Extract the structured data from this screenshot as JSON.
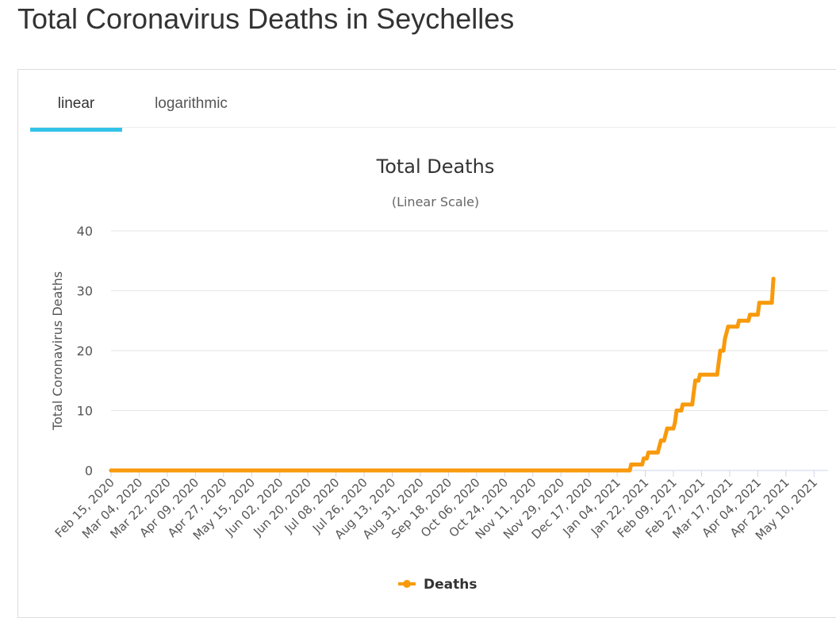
{
  "page": {
    "title": "Total Coronavirus Deaths in Seychelles"
  },
  "tabs": [
    {
      "label": "linear",
      "active": true
    },
    {
      "label": "logarithmic",
      "active": false
    }
  ],
  "colors": {
    "series": "#f89a0c",
    "tab_accent": "#33c3e8",
    "grid": "#e6e6e6"
  },
  "chart_data": {
    "type": "line",
    "title": "Total Deaths",
    "subtitle": "(Linear Scale)",
    "xlabel": "",
    "ylabel": "Total Coronavirus Deaths",
    "ylim": [
      0,
      40
    ],
    "yticks": [
      0,
      10,
      20,
      30,
      40
    ],
    "grid": true,
    "legend_position": "bottom",
    "x_start": "2020-02-15",
    "x_end": "2021-05-19",
    "x_tick_labels": [
      "Feb 15, 2020",
      "Mar 04, 2020",
      "Mar 22, 2020",
      "Apr 09, 2020",
      "Apr 27, 2020",
      "May 15, 2020",
      "Jun 02, 2020",
      "Jun 20, 2020",
      "Jul 08, 2020",
      "Jul 26, 2020",
      "Aug 13, 2020",
      "Aug 31, 2020",
      "Sep 18, 2020",
      "Oct 06, 2020",
      "Oct 24, 2020",
      "Nov 11, 2020",
      "Nov 29, 2020",
      "Dec 17, 2020",
      "Jan 04, 2021",
      "Jan 22, 2021",
      "Feb 09, 2021",
      "Feb 27, 2021",
      "Mar 17, 2021",
      "Apr 04, 2021",
      "Apr 22, 2021",
      "May 10, 2021"
    ],
    "series": [
      {
        "name": "Deaths",
        "points": [
          [
            "2020-02-15",
            0
          ],
          [
            "2021-01-12",
            0
          ],
          [
            "2021-01-13",
            1
          ],
          [
            "2021-01-20",
            1
          ],
          [
            "2021-01-21",
            2
          ],
          [
            "2021-01-23",
            2
          ],
          [
            "2021-01-24",
            3
          ],
          [
            "2021-01-30",
            3
          ],
          [
            "2021-01-31",
            4
          ],
          [
            "2021-02-01",
            5
          ],
          [
            "2021-02-03",
            5
          ],
          [
            "2021-02-04",
            6
          ],
          [
            "2021-02-05",
            7
          ],
          [
            "2021-02-09",
            7
          ],
          [
            "2021-02-10",
            8
          ],
          [
            "2021-02-11",
            10
          ],
          [
            "2021-02-14",
            10
          ],
          [
            "2021-02-15",
            11
          ],
          [
            "2021-02-21",
            11
          ],
          [
            "2021-02-22",
            13
          ],
          [
            "2021-02-23",
            15
          ],
          [
            "2021-02-25",
            15
          ],
          [
            "2021-02-26",
            16
          ],
          [
            "2021-03-09",
            16
          ],
          [
            "2021-03-10",
            18
          ],
          [
            "2021-03-11",
            20
          ],
          [
            "2021-03-13",
            20
          ],
          [
            "2021-03-14",
            22
          ],
          [
            "2021-03-15",
            23
          ],
          [
            "2021-03-16",
            24
          ],
          [
            "2021-03-22",
            24
          ],
          [
            "2021-03-23",
            25
          ],
          [
            "2021-03-29",
            25
          ],
          [
            "2021-03-30",
            26
          ],
          [
            "2021-04-04",
            26
          ],
          [
            "2021-04-05",
            28
          ],
          [
            "2021-04-13",
            28
          ],
          [
            "2021-04-14",
            32
          ]
        ]
      }
    ]
  }
}
